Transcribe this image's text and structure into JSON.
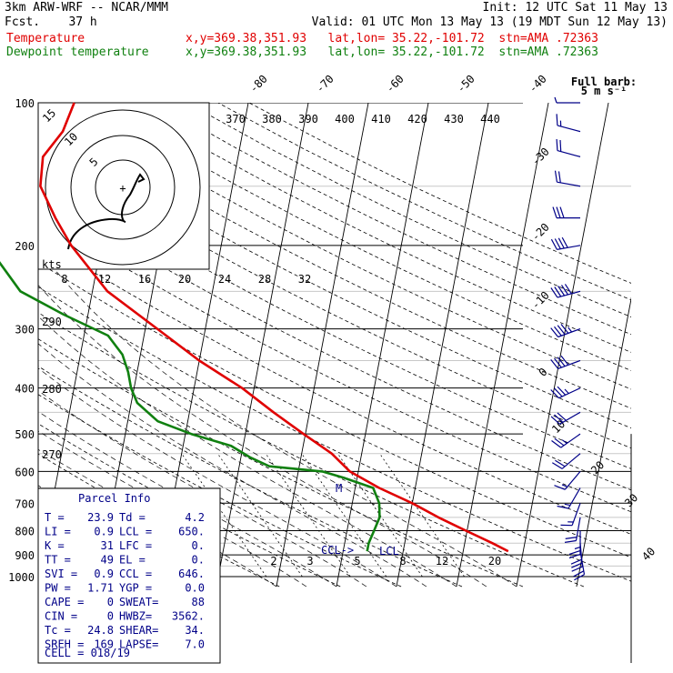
{
  "header": {
    "model": "3km ARW-WRF -- NCAR/MMM",
    "init": "Init: 12 UTC Sat 11 May 13",
    "fcst": "Fcst.    37 h",
    "valid": "Valid: 01 UTC Mon 13 May 13 (19 MDT Sun 12 May 13)",
    "temp_label": "Temperature",
    "dew_label": "Dewpoint temperature",
    "temp_loc": "x,y=369.38,351.93   lat,lon= 35.22,-101.72  stn=AMA .72363",
    "dew_loc": "x,y=369.38,351.93   lat,lon= 35.22,-101.72  stn=AMA .72363"
  },
  "colors": {
    "temperature": "#e00000",
    "dewpoint": "#108010",
    "barbs": "#000088",
    "panel": "#000088"
  },
  "full_barb_label": [
    "Full barb:",
    "5 m s⁻¹"
  ],
  "parcel_info": {
    "title": "Parcel Info",
    "rows": [
      [
        "T  =",
        "23.9",
        "Td =",
        "4.2"
      ],
      [
        "LI =",
        "0.9",
        "LCL =",
        "650."
      ],
      [
        "K  =",
        "31",
        "LFC =",
        "0."
      ],
      [
        "TT =",
        "49",
        "EL =",
        "0."
      ],
      [
        "SVI =",
        "0.9",
        "CCL =",
        "646."
      ],
      [
        "PW =",
        "1.71",
        "YGP =",
        "0.0"
      ],
      [
        "CAPE =",
        "0",
        "SWEAT=",
        "88"
      ],
      [
        "CIN =",
        "0",
        "HWBZ=",
        "3562."
      ],
      [
        "Tc =",
        "24.8",
        "SHEAR=",
        "34."
      ],
      [
        "SREH =",
        "169",
        "LAPSE=",
        "7.0"
      ]
    ],
    "cell": "CELL = 018/19"
  },
  "hodograph": {
    "ring_labels": [
      "5",
      "10",
      "15"
    ],
    "units": "kts"
  },
  "annotations": {
    "ccl": "CCL->",
    "lcl": "LCL",
    "max_wind": "M"
  },
  "chart_data": {
    "type": "line",
    "title": "",
    "xlabel": "",
    "ylabel": "",
    "pressure_ticks": [
      100,
      200,
      300,
      400,
      500,
      600,
      700,
      800,
      900,
      1000
    ],
    "temperature_ticks": [
      -80,
      -70,
      -60,
      -50,
      -40,
      -30,
      -20,
      -10,
      0,
      10,
      20,
      30,
      40
    ],
    "theta_labels": [
      370,
      380,
      390,
      400,
      410,
      420,
      430,
      440
    ],
    "thetae_labels": [
      290,
      280,
      270
    ],
    "mixing_ratio_labels": [
      2,
      3,
      5,
      8,
      12,
      20
    ],
    "upper_axis_labels": [
      8,
      12,
      16,
      20,
      24,
      28,
      32
    ],
    "series": [
      {
        "name": "Temperature",
        "pressure": [
          884,
          850,
          800,
          750,
          700,
          650,
          600,
          550,
          500,
          450,
          400,
          350,
          300,
          250,
          200,
          175,
          150,
          130,
          115,
          100
        ],
        "values": [
          27.5,
          24.6,
          19.8,
          14.8,
          10.0,
          4.0,
          -1.4,
          -5.0,
          -10.3,
          -16.0,
          -22.0,
          -30.0,
          -38.0,
          -47.5,
          -55.0,
          -58.5,
          -62.0,
          -62.5,
          -60.0,
          -59.0
        ]
      },
      {
        "name": "Dewpoint temperature",
        "pressure": [
          884,
          850,
          800,
          750,
          700,
          650,
          620,
          600,
          585,
          560,
          530,
          500,
          470,
          430,
          400,
          370,
          340,
          310,
          280,
          250,
          200,
          175,
          150,
          130,
          115,
          100
        ],
        "values": [
          4.0,
          4.0,
          4.5,
          5.0,
          4.5,
          3.0,
          -2.0,
          -6.0,
          -15.0,
          -18.5,
          -22.0,
          -29.0,
          -35.0,
          -39.0,
          -40.5,
          -41.5,
          -43.0,
          -46.0,
          -54.0,
          -62.0,
          -69.0,
          -72.0,
          -76.0,
          -80.0,
          -82.0,
          -84.0
        ]
      }
    ],
    "wind_barbs": [
      {
        "p": 100,
        "dir": 270,
        "kts": 5
      },
      {
        "p": 115,
        "dir": 285,
        "kts": 15
      },
      {
        "p": 130,
        "dir": 285,
        "kts": 20
      },
      {
        "p": 150,
        "dir": 280,
        "kts": 20
      },
      {
        "p": 175,
        "dir": 270,
        "kts": 30
      },
      {
        "p": 200,
        "dir": 260,
        "kts": 40
      },
      {
        "p": 250,
        "dir": 255,
        "kts": 50
      },
      {
        "p": 300,
        "dir": 250,
        "kts": 45
      },
      {
        "p": 350,
        "dir": 250,
        "kts": 40
      },
      {
        "p": 400,
        "dir": 245,
        "kts": 35
      },
      {
        "p": 450,
        "dir": 240,
        "kts": 30
      },
      {
        "p": 500,
        "dir": 235,
        "kts": 25
      },
      {
        "p": 550,
        "dir": 230,
        "kts": 20
      },
      {
        "p": 600,
        "dir": 220,
        "kts": 15
      },
      {
        "p": 650,
        "dir": 210,
        "kts": 15
      },
      {
        "p": 700,
        "dir": 200,
        "kts": 15
      },
      {
        "p": 750,
        "dir": 190,
        "kts": 20
      },
      {
        "p": 800,
        "dir": 180,
        "kts": 25
      },
      {
        "p": 850,
        "dir": 175,
        "kts": 30
      },
      {
        "p": 884,
        "dir": 170,
        "kts": 20
      }
    ]
  }
}
